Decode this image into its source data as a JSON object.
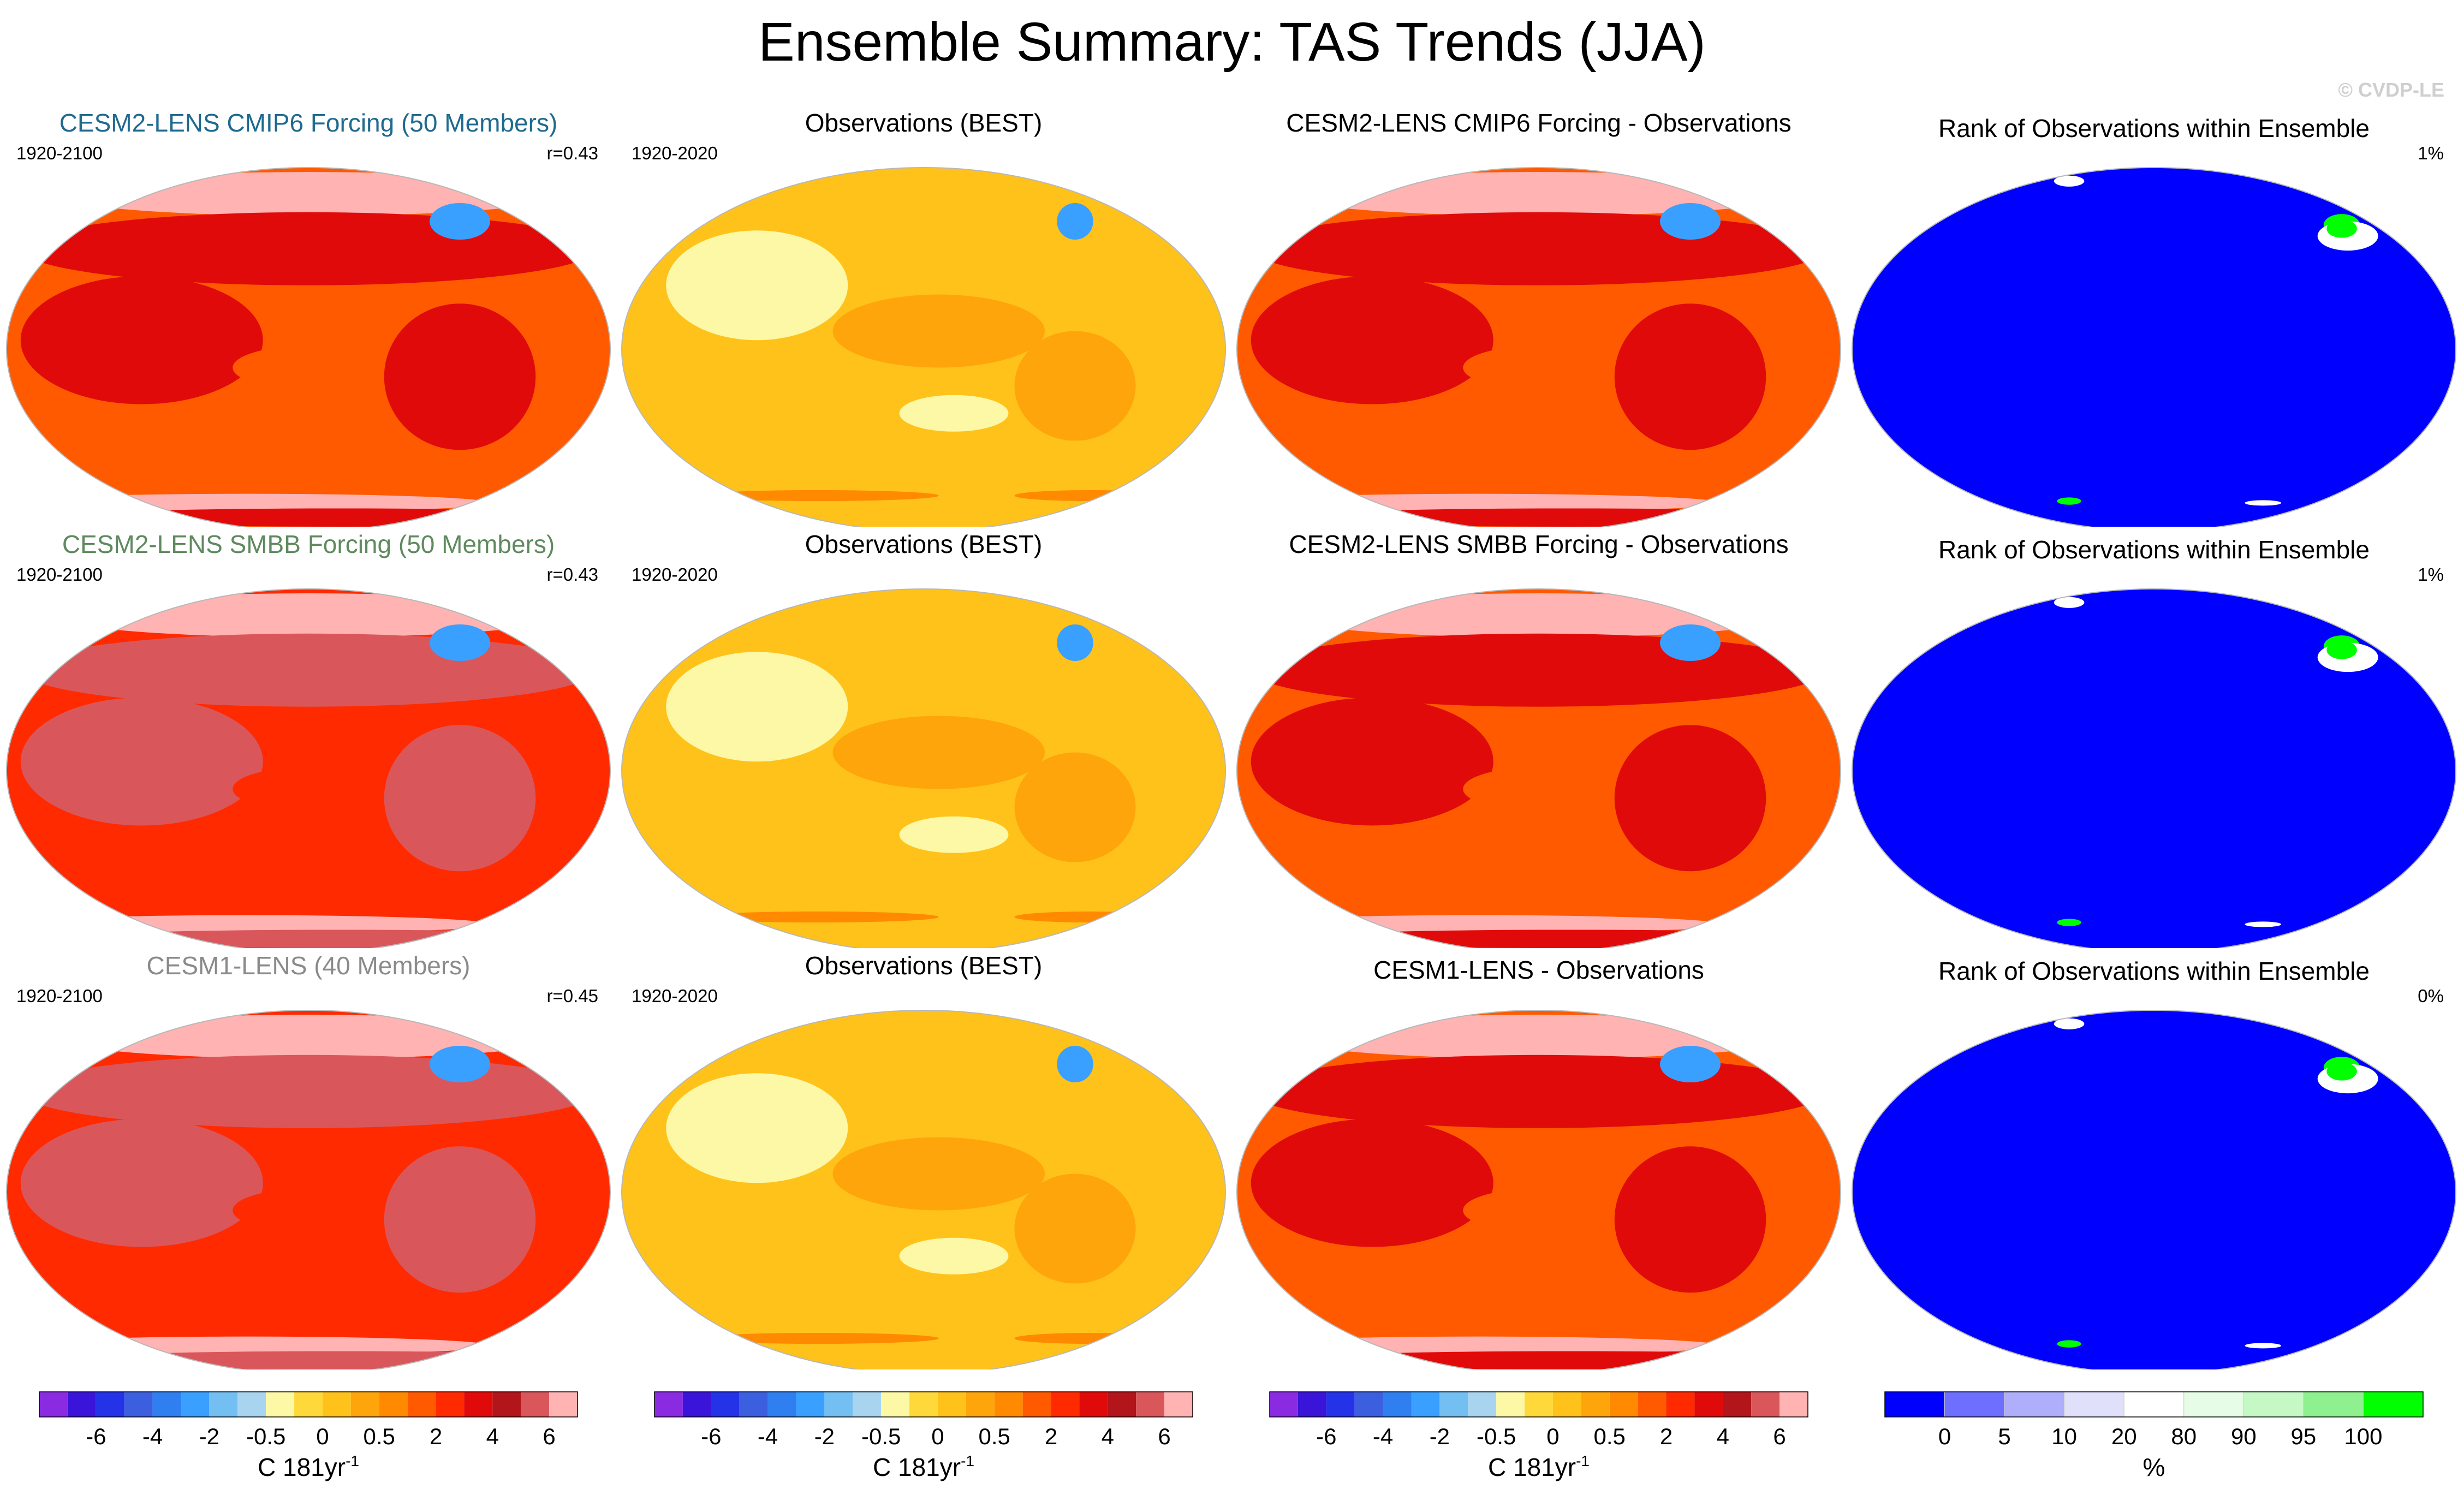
{
  "title": "Ensemble Summary: TAS Trends (JJA)",
  "watermark": "© CVDP-LE",
  "rows": [
    {
      "model": {
        "title": "CESM2-LENS CMIP6 Forcing (50 Members)",
        "title_color": "#1f6a8f",
        "period": "1920-2100",
        "corr": "r=0.43"
      },
      "obs": {
        "title": "Observations (BEST)",
        "period": "1920-2020"
      },
      "diff": {
        "title": "CESM2-LENS CMIP6 Forcing - Observations"
      },
      "rank": {
        "title": "Rank of Observations within Ensemble",
        "pct": "1%"
      }
    },
    {
      "model": {
        "title": "CESM2-LENS SMBB Forcing (50 Members)",
        "title_color": "#5f8a5f",
        "period": "1920-2100",
        "corr": "r=0.43"
      },
      "obs": {
        "title": "Observations (BEST)",
        "period": "1920-2020"
      },
      "diff": {
        "title": "CESM2-LENS SMBB Forcing - Observations"
      },
      "rank": {
        "title": "Rank of Observations within Ensemble",
        "pct": "1%"
      }
    },
    {
      "model": {
        "title": "CESM1-LENS (40 Members)",
        "title_color": "#8a8a8a",
        "period": "1920-2100",
        "corr": "r=0.45"
      },
      "obs": {
        "title": "Observations (BEST)",
        "period": "1920-2020"
      },
      "diff": {
        "title": "CESM1-LENS - Observations"
      },
      "rank": {
        "title": "Rank of Observations within Ensemble",
        "pct": "0%"
      }
    }
  ],
  "trend_colorbar": {
    "colors": [
      "#8a2be2",
      "#3a14d8",
      "#2432e8",
      "#3c5fe0",
      "#2f7ff0",
      "#3aa0ff",
      "#74bff2",
      "#a9d4f0",
      "#fdf8a6",
      "#ffd93a",
      "#ffc21a",
      "#ffa50c",
      "#ff8a00",
      "#ff5a00",
      "#ff2a00",
      "#e10a0a",
      "#b2151a",
      "#d9575b",
      "#ffb3b3"
    ],
    "ticks": [
      "-6",
      "-4",
      "-2",
      "-0.5",
      "0",
      "0.5",
      "2",
      "4",
      "6"
    ],
    "label": "C 181yr",
    "label_sup": "-1"
  },
  "rank_colorbar": {
    "colors": [
      "#0000ff",
      "#6e6eff",
      "#aeaefa",
      "#e0e0fb",
      "#ffffff",
      "#e6fce6",
      "#c6f8c6",
      "#8ef08e",
      "#00ff00"
    ],
    "ticks": [
      "0",
      "5",
      "10",
      "20",
      "80",
      "90",
      "95",
      "100"
    ],
    "label": "%"
  },
  "map_colors": {
    "model": {
      "base": "#ff5a00",
      "land": "#e10a0a",
      "high": "#ffb3b3",
      "cold": "#3aa0ff"
    },
    "model_b": {
      "base": "#ff2a00",
      "land": "#d9575b",
      "high": "#ffb3b3",
      "cold": "#3aa0ff"
    },
    "obs": {
      "base": "#ffc21a",
      "land": "#ffa50c",
      "light": "#fdf8a6",
      "cold": "#3aa0ff",
      "warm": "#ff8a00"
    },
    "diff": {
      "base": "#ff5a00",
      "land": "#e10a0a",
      "high": "#ffb3b3",
      "cold": "#3aa0ff"
    },
    "rank": {
      "base": "#0000ff",
      "green": "#00ff00",
      "white": "#ffffff"
    }
  }
}
